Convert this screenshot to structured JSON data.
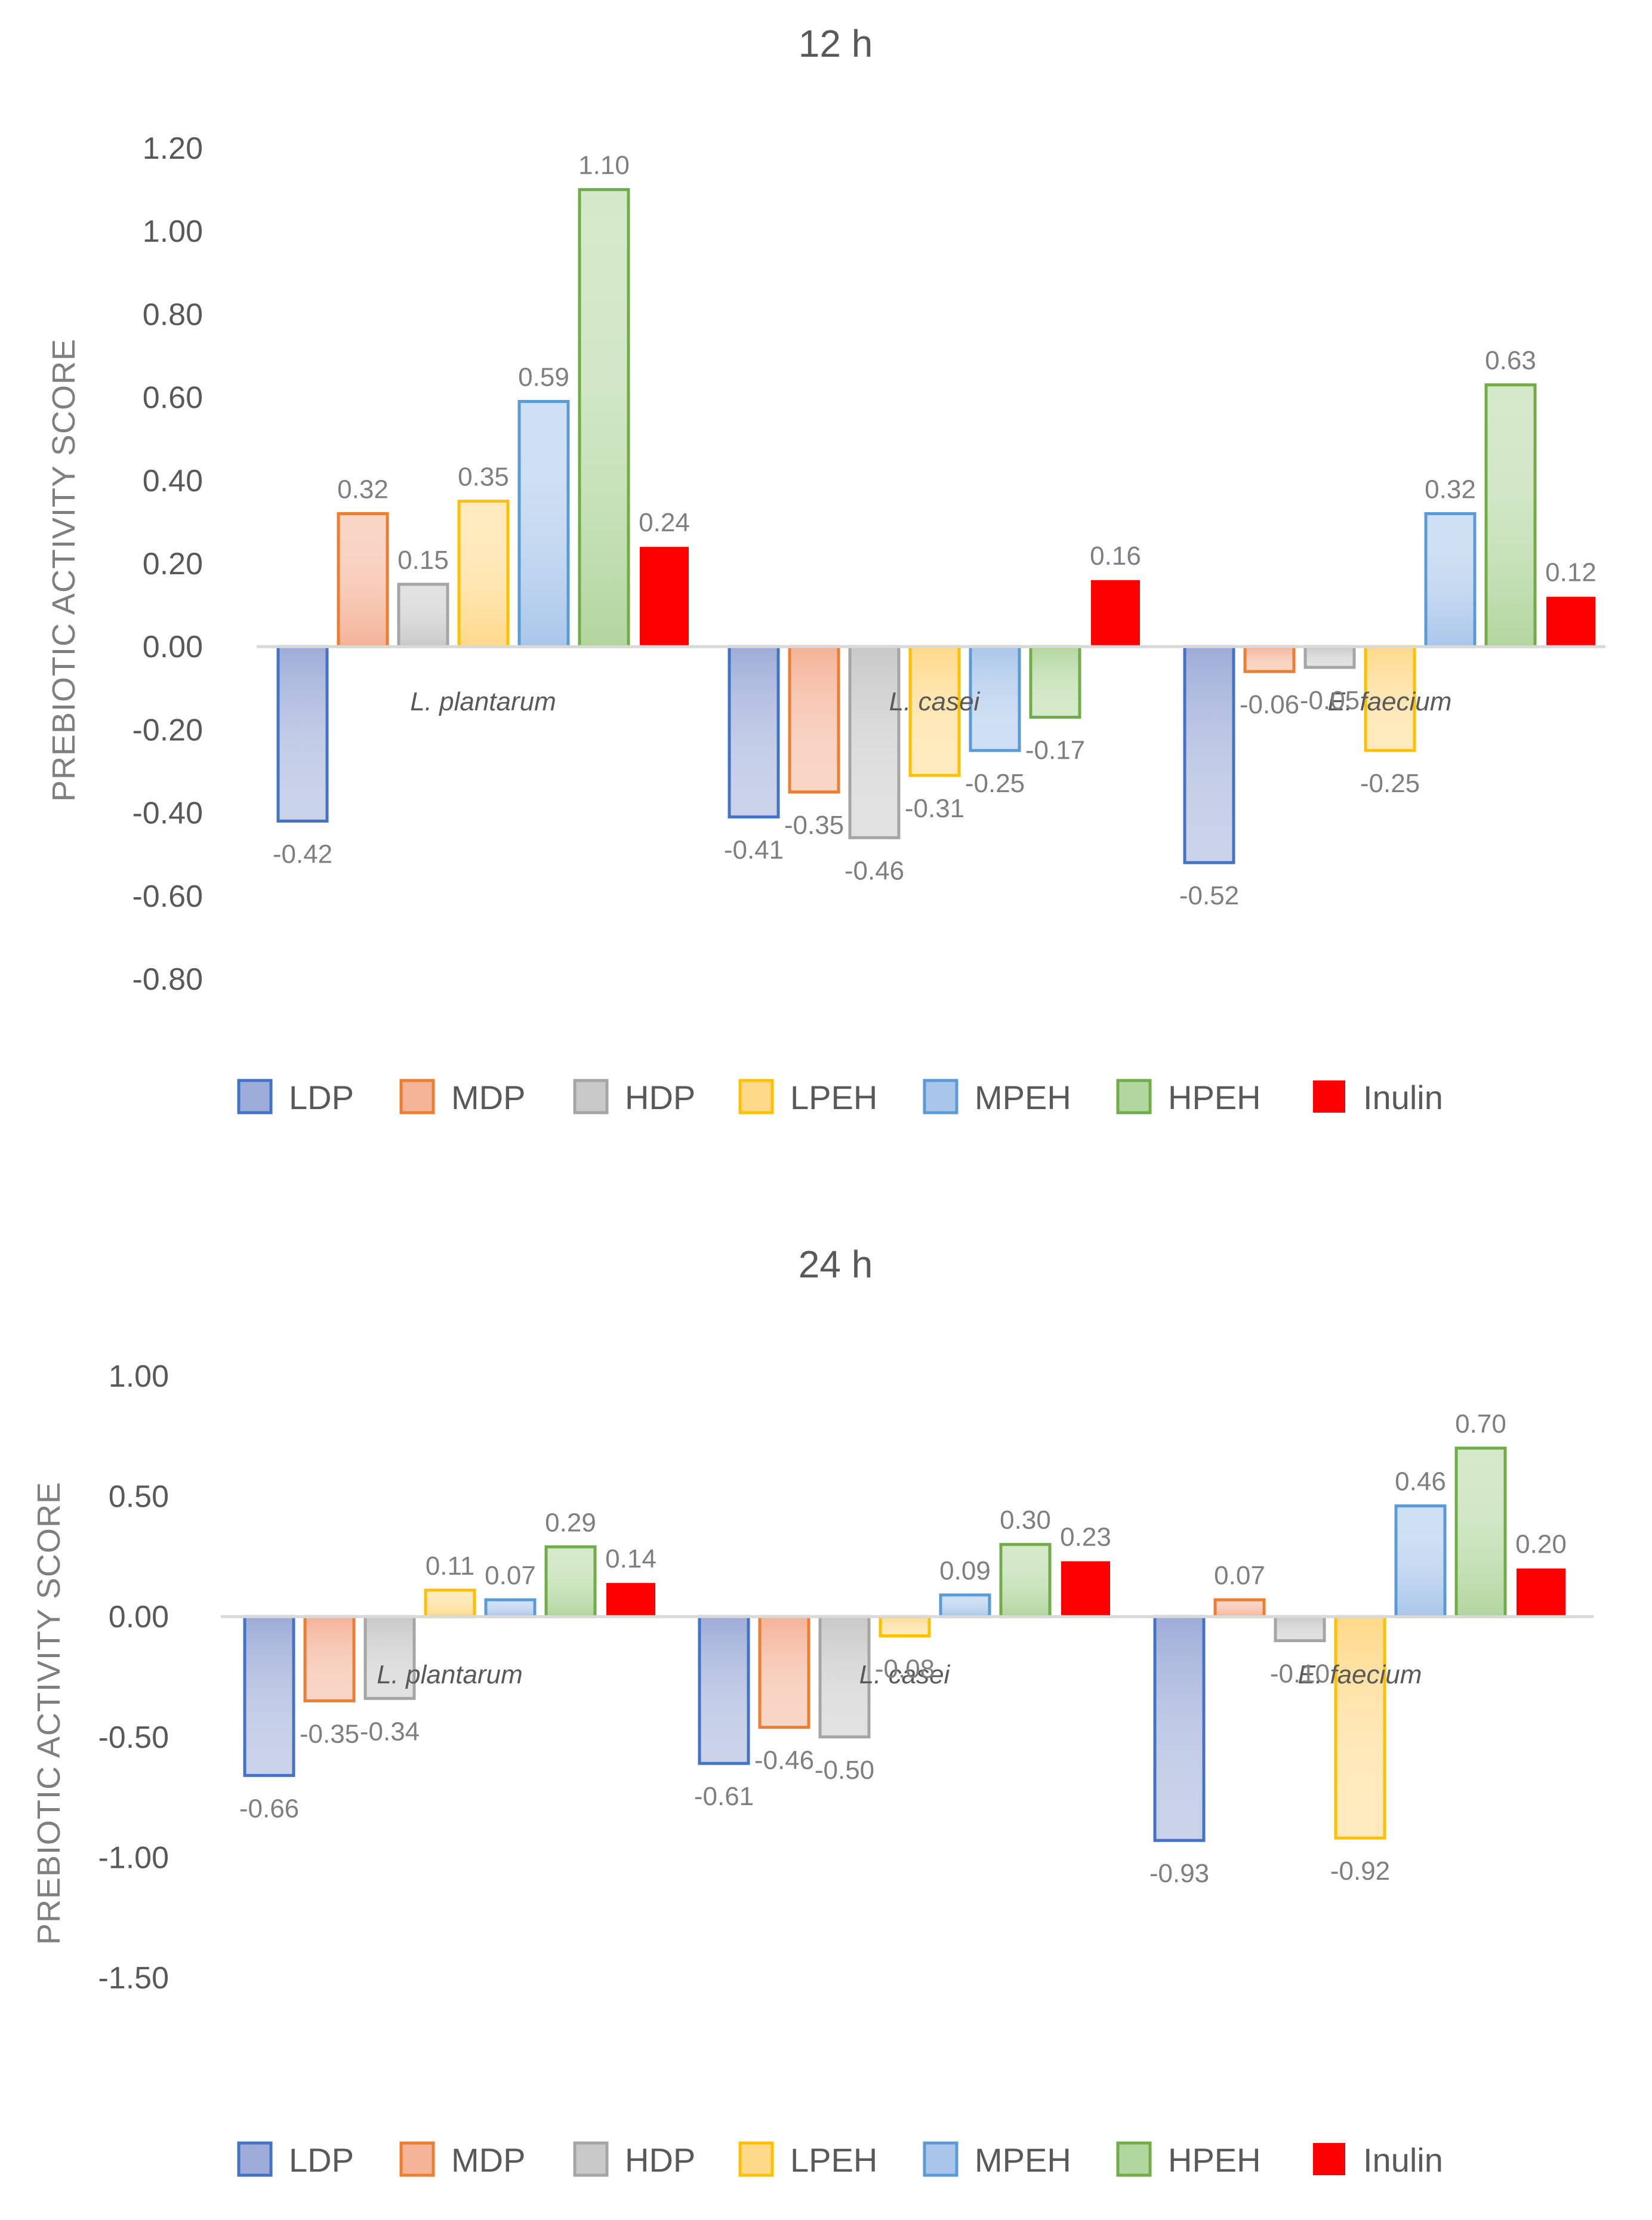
{
  "chart_data": [
    {
      "type": "bar",
      "title": "12 h",
      "xlabel": "",
      "ylabel": "PREBIOTIC ACTIVITY SCORE",
      "ylim": [
        -0.8,
        1.2
      ],
      "yticks": [
        "1.20",
        "1.00",
        "0.80",
        "0.60",
        "0.40",
        "0.20",
        "0.00",
        "-0.20",
        "-0.40",
        "-0.60",
        "-0.80"
      ],
      "categories": [
        "L. plantarum",
        "L. casei",
        "E. faecium"
      ],
      "series": [
        {
          "name": "LDP",
          "values": [
            -0.42,
            -0.41,
            -0.52
          ],
          "labels": [
            "-0.42",
            "-0.41",
            "-0.52"
          ]
        },
        {
          "name": "MDP",
          "values": [
            0.32,
            -0.35,
            -0.06
          ],
          "labels": [
            "0.32",
            "-0.35",
            "-0.06"
          ]
        },
        {
          "name": "HDP",
          "values": [
            0.15,
            -0.46,
            -0.05
          ],
          "labels": [
            "0.15",
            "-0.46",
            "-0.05"
          ]
        },
        {
          "name": "LPEH",
          "values": [
            0.35,
            -0.31,
            -0.25
          ],
          "labels": [
            "0.35",
            "-0.31",
            "-0.25"
          ]
        },
        {
          "name": "MPEH",
          "values": [
            0.59,
            -0.25,
            0.32
          ],
          "labels": [
            "0.59",
            "-0.25",
            "0.32"
          ]
        },
        {
          "name": "HPEH",
          "values": [
            1.1,
            -0.17,
            0.63
          ],
          "labels": [
            "1.10",
            "-0.17",
            "0.63"
          ]
        },
        {
          "name": "Inulin",
          "values": [
            0.24,
            0.16,
            0.12
          ],
          "labels": [
            "0.24",
            "0.16",
            "0.12"
          ]
        }
      ],
      "legend": "bottom"
    },
    {
      "type": "bar",
      "title": "24 h",
      "xlabel": "",
      "ylabel": "PREBIOTIC ACTIVITY SCORE",
      "ylim": [
        -1.5,
        1.0
      ],
      "yticks": [
        "1.00",
        "0.50",
        "0.00",
        "-0.50",
        "-1.00",
        "-1.50"
      ],
      "categories": [
        "L. plantarum",
        "L. casei",
        "E. faecium"
      ],
      "series": [
        {
          "name": "LDP",
          "values": [
            -0.66,
            -0.61,
            -0.93
          ],
          "labels": [
            "-0.66",
            "-0.61",
            "-0.93"
          ]
        },
        {
          "name": "MDP",
          "values": [
            -0.35,
            -0.46,
            0.07
          ],
          "labels": [
            "-0.35",
            "-0.46",
            "0.07"
          ]
        },
        {
          "name": "HDP",
          "values": [
            -0.34,
            -0.5,
            -0.1
          ],
          "labels": [
            "-0.34",
            "-0.50",
            "-0.10"
          ]
        },
        {
          "name": "LPEH",
          "values": [
            0.11,
            -0.08,
            -0.92
          ],
          "labels": [
            "0.11",
            "-0.08",
            "-0.92"
          ]
        },
        {
          "name": "MPEH",
          "values": [
            0.07,
            0.09,
            0.46
          ],
          "labels": [
            "0.07",
            "0.09",
            "0.46"
          ]
        },
        {
          "name": "HPEH",
          "values": [
            0.29,
            0.3,
            0.7
          ],
          "labels": [
            "0.29",
            "0.30",
            "0.70"
          ]
        },
        {
          "name": "Inulin",
          "values": [
            0.14,
            0.23,
            0.2
          ],
          "labels": [
            "0.14",
            "0.23",
            "0.20"
          ]
        }
      ],
      "legend": "bottom"
    }
  ],
  "series_colors": [
    {
      "fill": "#9dacd8",
      "stroke": "#4472c4"
    },
    {
      "fill": "#f4b297",
      "stroke": "#ed7d31"
    },
    {
      "fill": "#c8c8c8",
      "stroke": "#a5a5a5"
    },
    {
      "fill": "#ffd98a",
      "stroke": "#ffc000"
    },
    {
      "fill": "#a9c6ea",
      "stroke": "#5b9bd5"
    },
    {
      "fill": "#b2d69f",
      "stroke": "#70ad47"
    },
    {
      "fill": "#ff0000",
      "stroke": "#ff0000"
    }
  ]
}
